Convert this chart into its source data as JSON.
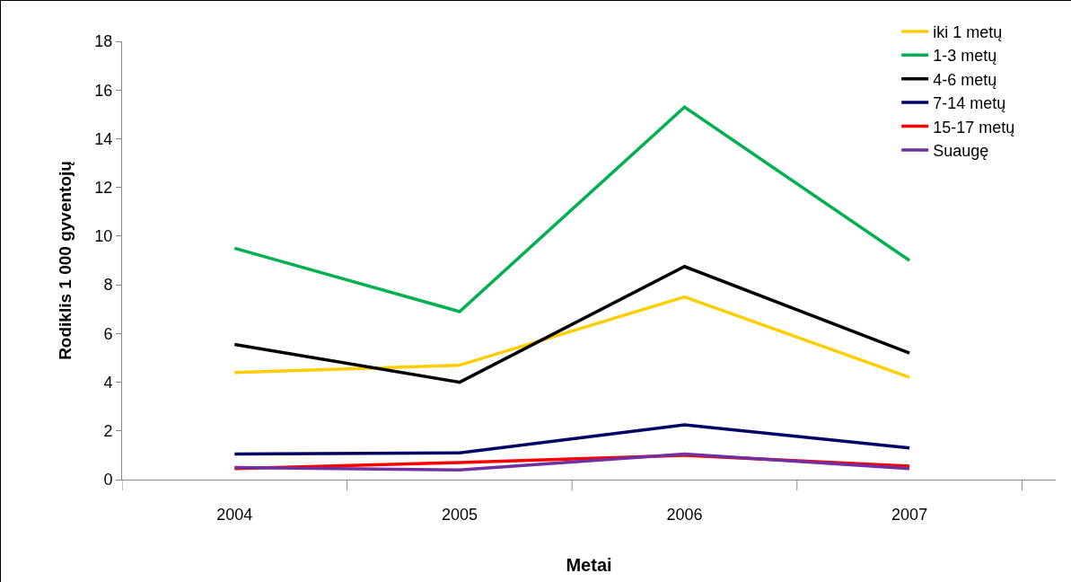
{
  "chart_data": {
    "type": "line",
    "xlabel": "Metai",
    "ylabel": "Rodiklis 1 000 gyventojų",
    "categories": [
      "2004",
      "2005",
      "2006",
      "2007"
    ],
    "ylim": [
      0,
      18
    ],
    "yticks": [
      0,
      2,
      4,
      6,
      8,
      10,
      12,
      14,
      16,
      18
    ],
    "grid": false,
    "legend": "top right",
    "marker": "none",
    "line_style": "solid",
    "series": [
      {
        "name": "iki 1 metų",
        "color": "#ffcc00",
        "values": [
          4.4,
          4.7,
          7.5,
          4.2
        ]
      },
      {
        "name": "1-3 metų",
        "color": "#00b050",
        "values": [
          9.5,
          6.9,
          15.3,
          9.0
        ]
      },
      {
        "name": "4-6 metų",
        "color": "#000000",
        "values": [
          5.55,
          4.0,
          8.75,
          5.2
        ]
      },
      {
        "name": "7-14 metų",
        "color": "#000066",
        "values": [
          1.05,
          1.1,
          2.25,
          1.3
        ]
      },
      {
        "name": "15-17 metų",
        "color": "#ff0000",
        "values": [
          0.45,
          0.7,
          1.0,
          0.55
        ]
      },
      {
        "name": "Suaugę",
        "color": "#7030a0",
        "values": [
          0.5,
          0.4,
          1.05,
          0.45
        ]
      }
    ]
  }
}
